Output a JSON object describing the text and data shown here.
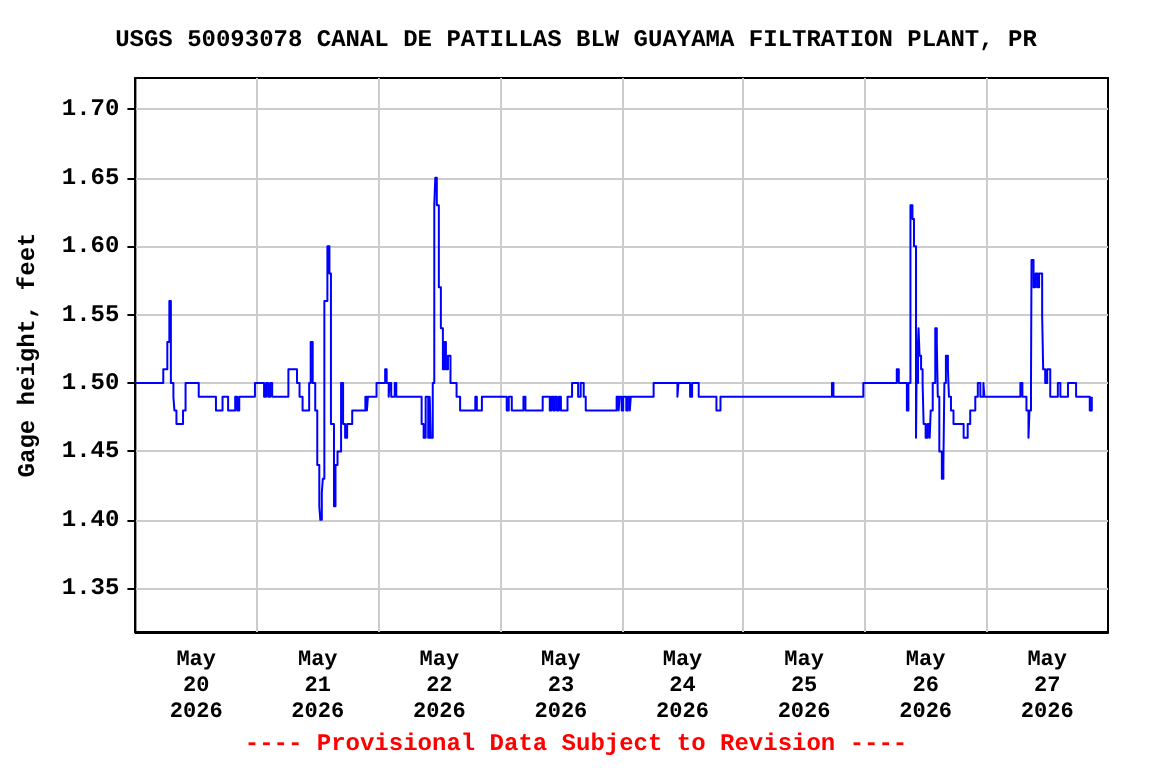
{
  "chart_data": {
    "type": "step",
    "title": "USGS 50093078 CANAL DE PATILLAS BLW GUAYAMA FILTRATION PLANT, PR",
    "ylabel": "Gage height, feet",
    "annotations": [
      "---- Provisional Data Subject to Revision ----"
    ],
    "xlim": [
      "2026-05-20T00:00",
      "2026-05-28T00:00"
    ],
    "xticks": [
      {
        "value": "2026-05-20T12:00",
        "label": "May\n20\n2026"
      },
      {
        "value": "2026-05-21T12:00",
        "label": "May\n21\n2026"
      },
      {
        "value": "2026-05-22T12:00",
        "label": "May\n22\n2026"
      },
      {
        "value": "2026-05-23T12:00",
        "label": "May\n23\n2026"
      },
      {
        "value": "2026-05-24T12:00",
        "label": "May\n24\n2026"
      },
      {
        "value": "2026-05-25T12:00",
        "label": "May\n25\n2026"
      },
      {
        "value": "2026-05-26T12:00",
        "label": "May\n26\n2026"
      },
      {
        "value": "2026-05-27T12:00",
        "label": "May\n27\n2026"
      },
      {
        "value": "2026-05-21T00:00",
        "label": null
      },
      {
        "value": "2026-05-22T00:00",
        "label": null
      },
      {
        "value": "2026-05-23T00:00",
        "label": null
      },
      {
        "value": "2026-05-24T00:00",
        "label": null
      },
      {
        "value": "2026-05-25T00:00",
        "label": null
      },
      {
        "value": "2026-05-26T00:00",
        "label": null
      },
      {
        "value": "2026-05-27T00:00",
        "label": null
      }
    ],
    "ylim": [
      1.318,
      1.723
    ],
    "yticks": [
      1.35,
      {
        "value": 1.4,
        "label": "1.40"
      },
      1.45,
      {
        "value": 1.5,
        "label": "1.50"
      },
      1.55,
      {
        "value": 1.6,
        "label": "1.60"
      },
      1.65,
      {
        "value": 1.7,
        "label": "1.70"
      }
    ],
    "grid": true,
    "marker": "none",
    "line_style": "solid",
    "series": [
      {
        "color": "#0000ff",
        "x": [
          "2026-05-20T00:00",
          "2026-05-20T05:30",
          "2026-05-20T06:18",
          "2026-05-20T06:42",
          "2026-05-20T07:00",
          "2026-05-20T07:30",
          "2026-05-20T07:42",
          "2026-05-20T08:06",
          "2026-05-20T09:24",
          "2026-05-20T09:54",
          "2026-05-20T12:30",
          "2026-05-20T15:54",
          "2026-05-20T17:12",
          "2026-05-20T18:18",
          "2026-05-20T19:42",
          "2026-05-20T20:06",
          "2026-05-20T20:30",
          "2026-05-20T23:36",
          "2026-05-21T01:24",
          "2026-05-21T01:48",
          "2026-05-21T02:12",
          "2026-05-21T02:36",
          "2026-05-21T03:00",
          "2026-05-21T06:12",
          "2026-05-21T07:54",
          "2026-05-21T08:24",
          "2026-05-21T09:00",
          "2026-05-21T10:18",
          "2026-05-21T10:36",
          "2026-05-21T11:00",
          "2026-05-21T11:30",
          "2026-05-21T11:54",
          "2026-05-21T12:18",
          "2026-05-21T12:30",
          "2026-05-21T12:48",
          "2026-05-21T13:00",
          "2026-05-21T13:18",
          "2026-05-21T13:54",
          "2026-05-21T14:18",
          "2026-05-21T14:36",
          "2026-05-21T15:12",
          "2026-05-21T15:30",
          "2026-05-21T15:54",
          "2026-05-21T16:36",
          "2026-05-21T17:00",
          "2026-05-21T17:24",
          "2026-05-21T17:48",
          "2026-05-21T18:48",
          "2026-05-21T21:24",
          "2026-05-21T21:42",
          "2026-05-21T21:54",
          "2026-05-21T23:36",
          "2026-05-22T01:18",
          "2026-05-22T01:36",
          "2026-05-22T02:00",
          "2026-05-22T02:12",
          "2026-05-22T02:30",
          "2026-05-22T03:12",
          "2026-05-22T03:30",
          "2026-05-22T08:30",
          "2026-05-22T08:54",
          "2026-05-22T09:18",
          "2026-05-22T09:48",
          "2026-05-22T10:06",
          "2026-05-22T10:18",
          "2026-05-22T10:42",
          "2026-05-22T11:00",
          "2026-05-22T11:12",
          "2026-05-22T11:30",
          "2026-05-22T11:54",
          "2026-05-22T12:18",
          "2026-05-22T12:42",
          "2026-05-22T13:00",
          "2026-05-22T13:18",
          "2026-05-22T13:42",
          "2026-05-22T14:12",
          "2026-05-22T15:24",
          "2026-05-22T16:06",
          "2026-05-22T19:06",
          "2026-05-22T19:24",
          "2026-05-22T20:24",
          "2026-05-23T01:18",
          "2026-05-23T01:42",
          "2026-05-23T02:18",
          "2026-05-23T04:36",
          "2026-05-23T05:00",
          "2026-05-23T08:24",
          "2026-05-23T09:48",
          "2026-05-23T10:06",
          "2026-05-23T10:30",
          "2026-05-23T10:48",
          "2026-05-23T11:12",
          "2026-05-23T11:36",
          "2026-05-23T12:00",
          "2026-05-23T13:18",
          "2026-05-23T14:12",
          "2026-05-23T15:24",
          "2026-05-23T15:54",
          "2026-05-23T16:30",
          "2026-05-23T16:54",
          "2026-05-23T23:00",
          "2026-05-23T23:24",
          "2026-05-23T23:36",
          "2026-05-24T00:00",
          "2026-05-24T00:18",
          "2026-05-24T00:54",
          "2026-05-24T01:12",
          "2026-05-24T01:36",
          "2026-05-24T01:48",
          "2026-05-24T06:18",
          "2026-05-24T11:00",
          "2026-05-24T11:12",
          "2026-05-24T13:30",
          "2026-05-24T13:54",
          "2026-05-24T15:12",
          "2026-05-24T18:42",
          "2026-05-24T19:30",
          "2026-05-25T17:30",
          "2026-05-25T17:48",
          "2026-05-25T23:42",
          "2026-05-26T06:18",
          "2026-05-26T06:42",
          "2026-05-26T08:18",
          "2026-05-26T08:36",
          "2026-05-26T09:00",
          "2026-05-26T09:24",
          "2026-05-26T09:42",
          "2026-05-26T10:06",
          "2026-05-26T10:12",
          "2026-05-26T10:30",
          "2026-05-26T10:36",
          "2026-05-26T10:48",
          "2026-05-26T11:06",
          "2026-05-26T11:24",
          "2026-05-26T11:36",
          "2026-05-26T12:00",
          "2026-05-26T12:24",
          "2026-05-26T12:48",
          "2026-05-26T13:00",
          "2026-05-26T13:24",
          "2026-05-26T13:54",
          "2026-05-26T14:12",
          "2026-05-26T14:24",
          "2026-05-26T14:42",
          "2026-05-26T15:12",
          "2026-05-26T15:30",
          "2026-05-26T15:42",
          "2026-05-26T16:00",
          "2026-05-26T16:24",
          "2026-05-26T16:36",
          "2026-05-26T17:00",
          "2026-05-26T17:30",
          "2026-05-26T19:30",
          "2026-05-26T20:18",
          "2026-05-26T20:48",
          "2026-05-26T21:48",
          "2026-05-26T22:18",
          "2026-05-26T22:48",
          "2026-05-26T23:24",
          "2026-05-26T23:36",
          "2026-05-27T06:42",
          "2026-05-27T07:06",
          "2026-05-27T07:54",
          "2026-05-27T08:18",
          "2026-05-27T08:30",
          "2026-05-27T08:48",
          "2026-05-27T08:54",
          "2026-05-27T09:18",
          "2026-05-27T09:42",
          "2026-05-27T10:06",
          "2026-05-27T10:24",
          "2026-05-27T11:00",
          "2026-05-27T11:12",
          "2026-05-27T11:36",
          "2026-05-27T12:00",
          "2026-05-27T12:36",
          "2026-05-27T14:06",
          "2026-05-27T14:36",
          "2026-05-27T16:06",
          "2026-05-27T17:42",
          "2026-05-27T20:24",
          "2026-05-27T20:48"
        ],
        "values": [
          1.5,
          1.51,
          1.53,
          1.56,
          1.5,
          1.49,
          1.48,
          1.47,
          1.48,
          1.5,
          1.49,
          1.48,
          1.49,
          1.48,
          1.49,
          1.48,
          1.49,
          1.5,
          1.49,
          1.5,
          1.49,
          1.5,
          1.49,
          1.51,
          1.5,
          1.49,
          1.48,
          1.5,
          1.53,
          1.5,
          1.48,
          1.44,
          1.41,
          1.4,
          1.42,
          1.43,
          1.56,
          1.6,
          1.58,
          1.47,
          1.41,
          1.44,
          1.45,
          1.5,
          1.47,
          1.46,
          1.47,
          1.48,
          1.49,
          1.48,
          1.49,
          1.5,
          1.51,
          1.5,
          1.49,
          1.5,
          1.49,
          1.5,
          1.49,
          1.47,
          1.46,
          1.49,
          1.46,
          1.49,
          1.46,
          1.5,
          1.63,
          1.65,
          1.63,
          1.57,
          1.54,
          1.51,
          1.53,
          1.51,
          1.52,
          1.5,
          1.49,
          1.48,
          1.49,
          1.48,
          1.49,
          1.48,
          1.49,
          1.48,
          1.49,
          1.48,
          1.49,
          1.48,
          1.49,
          1.48,
          1.49,
          1.48,
          1.49,
          1.48,
          1.49,
          1.5,
          1.49,
          1.5,
          1.49,
          1.48,
          1.49,
          1.48,
          1.49,
          1.48,
          1.49,
          1.48,
          1.49,
          1.48,
          1.49,
          1.5,
          1.49,
          1.5,
          1.49,
          1.5,
          1.49,
          1.48,
          1.49,
          1.5,
          1.49,
          1.5,
          1.51,
          1.5,
          1.48,
          1.5,
          1.63,
          1.62,
          1.6,
          1.46,
          1.5,
          1.53,
          1.54,
          1.52,
          1.51,
          1.5,
          1.47,
          1.46,
          1.47,
          1.46,
          1.48,
          1.5,
          1.54,
          1.53,
          1.49,
          1.45,
          1.43,
          1.44,
          1.5,
          1.52,
          1.51,
          1.49,
          1.48,
          1.47,
          1.46,
          1.47,
          1.48,
          1.49,
          1.5,
          1.49,
          1.5,
          1.49,
          1.5,
          1.49,
          1.48,
          1.46,
          1.48,
          1.5,
          1.59,
          1.57,
          1.58,
          1.57,
          1.58,
          1.55,
          1.51,
          1.5,
          1.51,
          1.49,
          1.5,
          1.49,
          1.5,
          1.49,
          1.48,
          1.49
        ]
      }
    ]
  }
}
